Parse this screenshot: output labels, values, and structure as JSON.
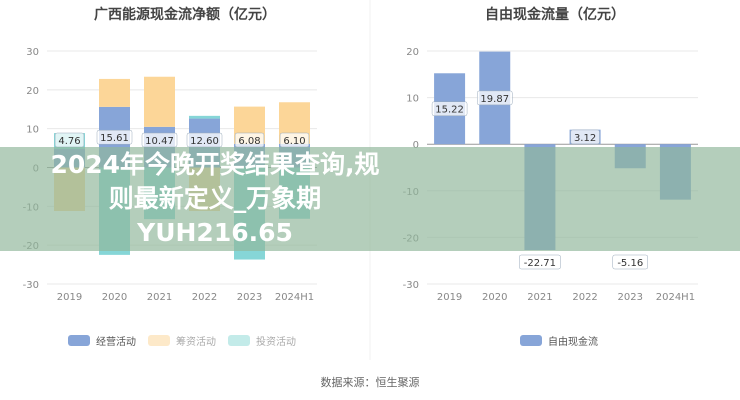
{
  "chart_data": [
    {
      "type": "bar",
      "stacked": true,
      "title": "广西能源现金流净额（亿元）",
      "categories": [
        "2019",
        "2020",
        "2021",
        "2022",
        "2023",
        "2024H1"
      ],
      "ylim": [
        -30,
        30
      ],
      "yticks": [
        30,
        20,
        10,
        0,
        -10,
        -20,
        -30
      ],
      "grid": true,
      "legend_position": "bottom-left",
      "series": [
        {
          "name": "经营活动",
          "color": "#87a5d8",
          "values": [
            4.76,
            15.61,
            10.47,
            12.6,
            6.08,
            6.1
          ],
          "labels": [
            "4.76",
            "15.61",
            "10.47",
            "12.60",
            "6.08",
            "6.10"
          ]
        },
        {
          "name": "筹资活动",
          "color": "#fcd698",
          "values": [
            -11.2,
            7.2,
            12.9,
            -11.2,
            9.6,
            10.7
          ]
        },
        {
          "name": "投资活动",
          "color": "#86d6d7",
          "values": [
            4.1,
            -22.5,
            -13.3,
            0.7,
            -23.7,
            -13.2
          ]
        }
      ]
    },
    {
      "type": "bar",
      "title": "自由现金流量（亿元）",
      "categories": [
        "2019",
        "2020",
        "2021",
        "2022",
        "2023",
        "2024H1"
      ],
      "ylim": [
        -30,
        20
      ],
      "yticks": [
        20,
        10,
        0,
        -10,
        -20,
        -30
      ],
      "grid": true,
      "legend_position": "bottom",
      "series": [
        {
          "name": "自由现金流",
          "color": "#87a5d8",
          "values": [
            15.22,
            19.87,
            -22.71,
            3.12,
            -5.16,
            -11.9
          ],
          "labels": [
            "15.22",
            "19.87",
            "-22.71",
            "3.12",
            "-5.16",
            ""
          ]
        }
      ]
    }
  ],
  "source": "数据来源：恒生聚源",
  "banner": {
    "line1": "2024年今晚开奖结果查询,规则最新定义_万象期",
    "line2": "YUH216.65",
    "color": "#91b79b"
  }
}
